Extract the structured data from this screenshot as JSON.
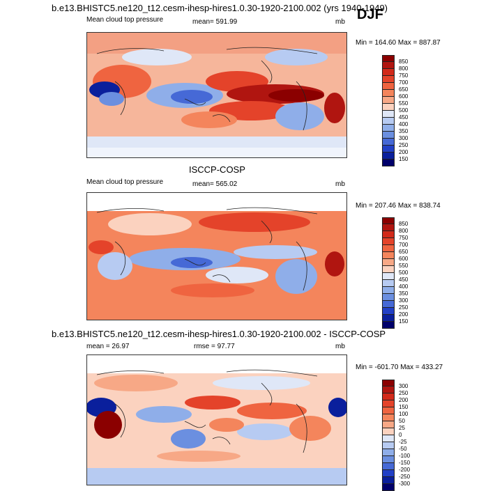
{
  "header": {
    "title": "b.e13.BHISTC5.ne120_t12.cesm-ihesp-hires1.0.30-1920-2100.002 (yrs 1940-1949)",
    "season": "DJF"
  },
  "panels": [
    {
      "left_label": "Mean cloud top pressure",
      "stat_label": "mean= 591.99",
      "unit": "mb",
      "range_label": "Min = 164.60 Max = 887.87",
      "colorbar": [
        "850",
        "800",
        "750",
        "700",
        "650",
        "600",
        "550",
        "500",
        "450",
        "400",
        "350",
        "300",
        "250",
        "200",
        "150"
      ],
      "colors": [
        "#8b0000",
        "#b01510",
        "#d22a1a",
        "#e4432a",
        "#ef6440",
        "#f4855c",
        "#f7a886",
        "#fbd2bf",
        "#dfe7f7",
        "#b7cbf2",
        "#8faee9",
        "#6b8fe0",
        "#4669d6",
        "#2240c6",
        "#0a1f9c",
        "#00006b"
      ]
    },
    {
      "title": "ISCCP-COSP",
      "left_label": "Mean cloud top pressure",
      "stat_label": "mean= 565.02",
      "unit": "mb",
      "range_label": "Min = 207.46 Max = 838.74",
      "colorbar": [
        "850",
        "800",
        "750",
        "700",
        "650",
        "600",
        "550",
        "500",
        "450",
        "400",
        "350",
        "300",
        "250",
        "200",
        "150"
      ],
      "colors": [
        "#8b0000",
        "#b01510",
        "#d22a1a",
        "#e4432a",
        "#ef6440",
        "#f4855c",
        "#f7a886",
        "#fbd2bf",
        "#dfe7f7",
        "#b7cbf2",
        "#8faee9",
        "#6b8fe0",
        "#4669d6",
        "#2240c6",
        "#0a1f9c",
        "#00006b"
      ]
    },
    {
      "title": "b.e13.BHISTC5.ne120_t12.cesm-ihesp-hires1.0.30-1920-2100.002 - ISCCP-COSP",
      "left_label": "mean =  26.97",
      "stat_label": "rmse =  97.77",
      "unit": "mb",
      "range_label": "Min = -601.70 Max = 433.27",
      "colorbar": [
        "300",
        "250",
        "200",
        "150",
        "100",
        "50",
        "25",
        "0",
        "-25",
        "-50",
        "-100",
        "-150",
        "-200",
        "-250",
        "-300"
      ],
      "colors": [
        "#8b0000",
        "#b01510",
        "#d22a1a",
        "#e4432a",
        "#ef6440",
        "#f4855c",
        "#f7a886",
        "#fbd2bf",
        "#dfe7f7",
        "#b7cbf2",
        "#8faee9",
        "#6b8fe0",
        "#4669d6",
        "#2240c6",
        "#0a1f9c",
        "#00006b"
      ]
    }
  ]
}
